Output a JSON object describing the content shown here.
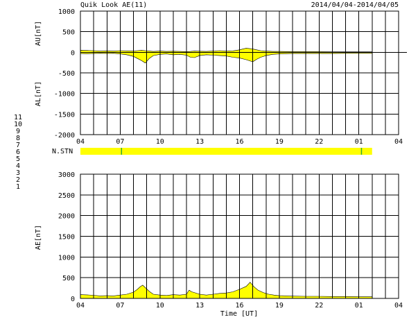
{
  "header": {
    "title": "Quik Look AE(11)",
    "date_range": "2014/04/04-2014/04/05"
  },
  "x_axis": {
    "tick_labels": [
      "04",
      "07",
      "10",
      "13",
      "16",
      "19",
      "22",
      "01",
      "04"
    ],
    "label": "Time [UT]"
  },
  "station_legend": {
    "items": [
      {
        "label": "11",
        "color": "#33cccc"
      },
      {
        "label": "10",
        "color": "#ff33ff"
      },
      {
        "label": "9",
        "color": "#3333cc"
      },
      {
        "label": "8",
        "color": "#ffff66"
      },
      {
        "label": "7",
        "color": "#66cc66"
      },
      {
        "label": "6",
        "color": "#ff3333"
      },
      {
        "label": "5",
        "color": "#cccccc"
      },
      {
        "label": "4",
        "color": "#aaaaaa"
      },
      {
        "label": "3",
        "color": "#33aaaa"
      },
      {
        "label": "2",
        "color": "#aa33aa"
      },
      {
        "label": "1",
        "color": "#3333aa"
      }
    ]
  },
  "nstn": {
    "label": "N.STN",
    "bar_color": "#ffff00",
    "marker_color": "#33aa33",
    "markers_hours": [
      3.1,
      21.2
    ],
    "data_end_hour": 22.0
  },
  "chart_data": [
    {
      "type": "area",
      "ylabels": [
        "AU[nT]",
        "AL[nT]"
      ],
      "ylim": [
        -2000,
        1000
      ],
      "yticks": [
        1000,
        500,
        0,
        -500,
        -1000,
        -1500,
        -2000
      ],
      "xlim_hours": [
        0,
        24
      ],
      "fill_color": "#ffff00",
      "series": [
        {
          "values": [
            [
              0,
              50,
              -30
            ],
            [
              0.5,
              45,
              -35
            ],
            [
              1,
              40,
              -30
            ],
            [
              1.5,
              30,
              -25
            ],
            [
              2,
              35,
              -30
            ],
            [
              2.5,
              30,
              -25
            ],
            [
              3,
              40,
              -40
            ],
            [
              3.5,
              35,
              -60
            ],
            [
              4,
              30,
              -100
            ],
            [
              4.3,
              40,
              -150
            ],
            [
              4.6,
              50,
              -200
            ],
            [
              4.9,
              40,
              -260
            ],
            [
              5.2,
              30,
              -150
            ],
            [
              5.5,
              20,
              -80
            ],
            [
              6,
              30,
              -50
            ],
            [
              6.5,
              20,
              -40
            ],
            [
              7,
              25,
              -60
            ],
            [
              7.5,
              20,
              -50
            ],
            [
              8,
              15,
              -70
            ],
            [
              8.3,
              20,
              -120
            ],
            [
              8.6,
              30,
              -130
            ],
            [
              9,
              25,
              -80
            ],
            [
              9.5,
              20,
              -60
            ],
            [
              10,
              30,
              -70
            ],
            [
              10.5,
              40,
              -80
            ],
            [
              11,
              30,
              -90
            ],
            [
              11.5,
              35,
              -120
            ],
            [
              12,
              60,
              -140
            ],
            [
              12.5,
              100,
              -180
            ],
            [
              13,
              80,
              -230
            ],
            [
              13.3,
              60,
              -170
            ],
            [
              13.6,
              40,
              -120
            ],
            [
              14,
              30,
              -80
            ],
            [
              14.5,
              20,
              -50
            ],
            [
              15,
              20,
              -40
            ],
            [
              16,
              15,
              -30
            ],
            [
              17,
              15,
              -30
            ],
            [
              18,
              15,
              -30
            ],
            [
              19,
              10,
              -30
            ],
            [
              20,
              10,
              -25
            ],
            [
              21,
              10,
              -25
            ],
            [
              22,
              10,
              -25
            ]
          ]
        }
      ]
    },
    {
      "type": "area",
      "ylabel": "AE[nT]",
      "ylim": [
        0,
        3000
      ],
      "yticks": [
        3000,
        2500,
        2000,
        1500,
        1000,
        500,
        0
      ],
      "xlim_hours": [
        0,
        24
      ],
      "fill_color": "#ffff00",
      "series": [
        {
          "values": [
            [
              0,
              90
            ],
            [
              0.5,
              85
            ],
            [
              1,
              75
            ],
            [
              1.5,
              60
            ],
            [
              2,
              65
            ],
            [
              2.5,
              60
            ],
            [
              3,
              80
            ],
            [
              3.5,
              100
            ],
            [
              4,
              150
            ],
            [
              4.3,
              220
            ],
            [
              4.5,
              280
            ],
            [
              4.7,
              320
            ],
            [
              4.9,
              260
            ],
            [
              5.2,
              170
            ],
            [
              5.5,
              100
            ],
            [
              6,
              80
            ],
            [
              6.5,
              70
            ],
            [
              7,
              90
            ],
            [
              7.5,
              80
            ],
            [
              8,
              100
            ],
            [
              8.2,
              200
            ],
            [
              8.4,
              160
            ],
            [
              8.6,
              140
            ],
            [
              9,
              100
            ],
            [
              9.5,
              80
            ],
            [
              10,
              100
            ],
            [
              10.5,
              120
            ],
            [
              11,
              130
            ],
            [
              11.5,
              160
            ],
            [
              12,
              220
            ],
            [
              12.5,
              290
            ],
            [
              12.8,
              390
            ],
            [
              13.1,
              280
            ],
            [
              13.4,
              200
            ],
            [
              13.8,
              140
            ],
            [
              14.2,
              100
            ],
            [
              14.6,
              80
            ],
            [
              15,
              65
            ],
            [
              16,
              55
            ],
            [
              17,
              50
            ],
            [
              18,
              50
            ],
            [
              19,
              45
            ],
            [
              20,
              45
            ],
            [
              21,
              40
            ],
            [
              22,
              40
            ]
          ]
        }
      ]
    }
  ]
}
